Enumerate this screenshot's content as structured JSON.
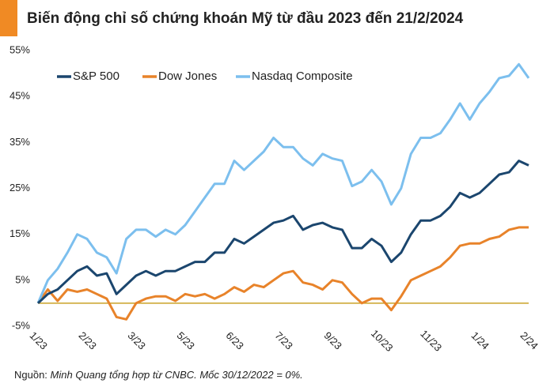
{
  "chart_data": {
    "type": "line",
    "title": "Biến động chỉ số chứng khoán Mỹ từ đầu 2023 đến 21/2/2024",
    "source_label": "Nguồn:",
    "source": "Minh Quang tổng hợp từ CNBC. Mốc 30/12/2022 = 0%.",
    "categories": [
      "1/23",
      null,
      null,
      null,
      null,
      "2/23",
      null,
      null,
      null,
      null,
      "3/23",
      null,
      null,
      null,
      null,
      "5/23",
      null,
      null,
      null,
      null,
      "6/23",
      null,
      null,
      null,
      null,
      "7/23",
      null,
      null,
      null,
      null,
      "9/23",
      null,
      null,
      null,
      null,
      "10/23",
      null,
      null,
      null,
      null,
      "11/23",
      null,
      null,
      null,
      null,
      "1/24",
      null,
      null,
      null,
      null,
      "2/24"
    ],
    "series": [
      {
        "name": "S&P 500",
        "color": "#1b466e",
        "values": [
          0,
          2,
          3,
          5,
          7,
          8,
          6,
          6.5,
          2,
          4,
          6,
          7,
          6,
          7,
          7,
          8,
          9,
          9,
          11,
          11,
          14,
          13,
          14.5,
          16,
          17.5,
          18,
          19,
          16,
          17,
          17.5,
          16.5,
          16,
          12,
          12,
          14,
          12.5,
          9,
          11,
          15,
          18,
          18,
          19,
          21,
          24,
          23,
          24,
          26,
          28,
          28.5,
          31,
          30
        ]
      },
      {
        "name": "Dow Jones",
        "color": "#e8832a",
        "values": [
          0,
          3,
          0.5,
          3,
          2.5,
          3,
          2,
          1,
          -3,
          -3.5,
          0,
          1,
          1.5,
          1.5,
          0.5,
          2,
          1.5,
          2,
          1,
          2,
          3.5,
          2.5,
          4,
          3.5,
          5,
          6.5,
          7,
          4.5,
          4,
          3,
          5,
          4.5,
          2,
          0,
          1,
          1,
          -1.5,
          1.5,
          5,
          6,
          7,
          8,
          10,
          12.5,
          13,
          13,
          14,
          14.5,
          16,
          16.5,
          16.5
        ]
      },
      {
        "name": "Nasdaq Composite",
        "color": "#7cbfee",
        "values": [
          0,
          5,
          7.5,
          11,
          15,
          14,
          11,
          10,
          6.5,
          14,
          16,
          16,
          14.5,
          16,
          15,
          17,
          20,
          23,
          26,
          26,
          31,
          29,
          31,
          33,
          36,
          34,
          34,
          31.5,
          30,
          32.5,
          31.5,
          31,
          25.5,
          26.5,
          29,
          26.5,
          21.5,
          25,
          32.5,
          36,
          36,
          37,
          40,
          43.5,
          40,
          43.5,
          46,
          49,
          49.5,
          52,
          49
        ]
      }
    ],
    "ylim": [
      -5,
      55
    ],
    "yticks": [
      {
        "value": -5,
        "label": "-5%"
      },
      {
        "value": 5,
        "label": "5%"
      },
      {
        "value": 15,
        "label": "15%"
      },
      {
        "value": 25,
        "label": "25%"
      },
      {
        "value": 35,
        "label": "35%"
      },
      {
        "value": 45,
        "label": "45%"
      },
      {
        "value": 55,
        "label": "55%"
      }
    ],
    "zero_line_color": "#c9a227",
    "grid": false,
    "legend": "top"
  }
}
